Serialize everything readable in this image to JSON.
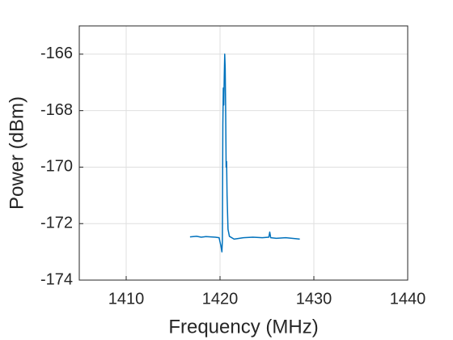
{
  "chart_data": {
    "type": "line",
    "xlabel": "Frequency (MHz)",
    "ylabel": "Power (dBm)",
    "x": [
      1416.8,
      1417.5,
      1418.0,
      1418.5,
      1419.0,
      1419.5,
      1419.9,
      1420.1,
      1420.2,
      1420.25,
      1420.3,
      1420.35,
      1420.4,
      1420.45,
      1420.5,
      1420.55,
      1420.6,
      1420.65,
      1420.7,
      1420.75,
      1420.85,
      1421.0,
      1421.5,
      1422.5,
      1423.5,
      1424.5,
      1425.2,
      1425.3,
      1425.4,
      1426.0,
      1427.0,
      1428.0,
      1428.5
    ],
    "series": [
      {
        "color": "#0072bd",
        "values": [
          -172.47,
          -172.45,
          -172.48,
          -172.46,
          -172.47,
          -172.48,
          -172.5,
          -172.8,
          -173.0,
          -172.6,
          -168.5,
          -167.2,
          -167.8,
          -166.8,
          -166.0,
          -166.5,
          -168.0,
          -170.0,
          -169.8,
          -171.0,
          -172.2,
          -172.45,
          -172.55,
          -172.5,
          -172.48,
          -172.5,
          -172.48,
          -172.3,
          -172.5,
          -172.52,
          -172.5,
          -172.53,
          -172.55
        ]
      }
    ],
    "xlim": [
      1405,
      1440
    ],
    "ylim": [
      -174,
      -165
    ],
    "xticks": [
      1410,
      1420,
      1430,
      1440
    ],
    "yticks": [
      -174,
      -172,
      -170,
      -168,
      -166
    ],
    "grid": true
  }
}
